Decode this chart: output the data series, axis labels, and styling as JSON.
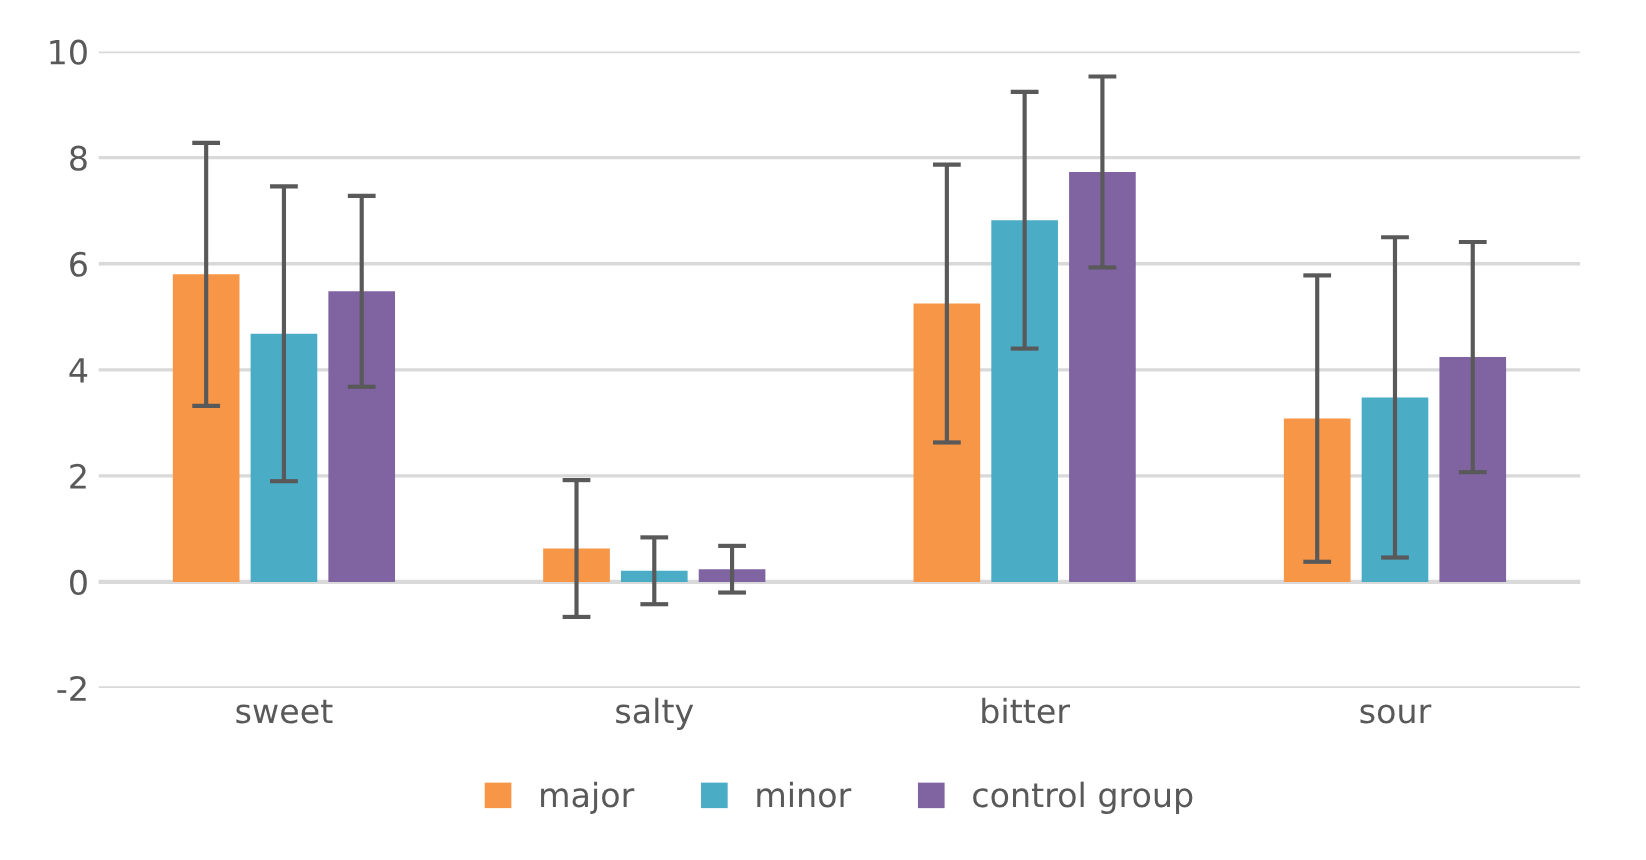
{
  "chart_data": {
    "type": "bar",
    "categories": [
      "sweet",
      "salty",
      "bitter",
      "sour"
    ],
    "series": [
      {
        "name": "major",
        "color": "#f79646",
        "values": [
          5.8,
          0.63,
          5.25,
          3.08
        ],
        "errors": [
          2.48,
          1.29,
          2.62,
          2.7
        ]
      },
      {
        "name": "minor",
        "color": "#4bacc6",
        "values": [
          4.68,
          0.21,
          6.82,
          3.48
        ],
        "errors": [
          2.78,
          0.63,
          2.42,
          3.02
        ]
      },
      {
        "name": "control group",
        "color": "#8064a2",
        "values": [
          5.48,
          0.24,
          7.73,
          4.24
        ],
        "errors": [
          1.8,
          0.44,
          1.8,
          2.17
        ]
      }
    ],
    "ylim": [
      -2,
      10
    ],
    "yticks": [
      -2,
      0,
      2,
      4,
      6,
      8,
      10
    ],
    "grid": "y",
    "legend": "bottom"
  }
}
